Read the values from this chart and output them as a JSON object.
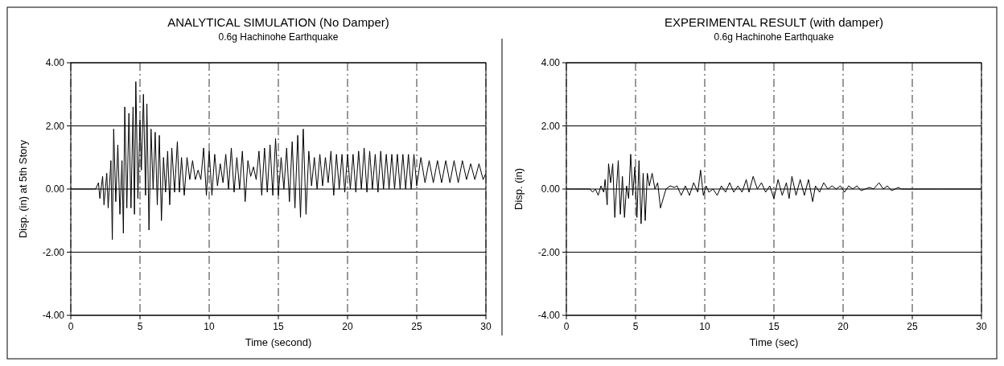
{
  "chart_data": [
    {
      "type": "line",
      "title": "ANALYTICAL SIMULATION (No Damper)",
      "subtitle": "0.6g Hachinohe Earthquake",
      "xlabel": "Time (second)",
      "ylabel": "Disp. (in) at 5th Story",
      "color": "#000000",
      "grid": true,
      "xlim": [
        0,
        30
      ],
      "xticks": [
        0,
        5,
        10,
        15,
        20,
        25,
        30
      ],
      "ylim": [
        -4,
        4
      ],
      "yticks": [
        {
          "value": 4,
          "label": "4.00"
        },
        {
          "value": 2,
          "label": "2.00"
        },
        {
          "value": 0,
          "label": "0.00"
        },
        {
          "value": -2,
          "label": "-2.00"
        },
        {
          "value": -4,
          "label": "-4.00"
        }
      ],
      "x": [
        0,
        1.8,
        2.0,
        2.1,
        2.3,
        2.4,
        2.6,
        2.7,
        2.9,
        3.0,
        3.1,
        3.25,
        3.4,
        3.55,
        3.7,
        3.8,
        3.9,
        4.05,
        4.2,
        4.35,
        4.5,
        4.6,
        4.7,
        4.85,
        5.0,
        5.1,
        5.25,
        5.4,
        5.5,
        5.65,
        5.8,
        5.95,
        6.1,
        6.25,
        6.4,
        6.55,
        6.7,
        6.85,
        7.0,
        7.15,
        7.3,
        7.5,
        7.7,
        7.85,
        8.0,
        8.2,
        8.4,
        8.6,
        8.8,
        9.0,
        9.2,
        9.4,
        9.6,
        9.8,
        10.0,
        10.2,
        10.4,
        10.6,
        10.8,
        11.0,
        11.2,
        11.4,
        11.6,
        11.8,
        12.0,
        12.2,
        12.4,
        12.6,
        12.8,
        13.0,
        13.2,
        13.4,
        13.6,
        13.8,
        14.0,
        14.2,
        14.4,
        14.6,
        14.8,
        15.0,
        15.2,
        15.4,
        15.6,
        15.8,
        16.0,
        16.2,
        16.4,
        16.6,
        16.8,
        17.0,
        17.2,
        17.4,
        17.6,
        17.8,
        18.0,
        18.2,
        18.4,
        18.6,
        18.8,
        19.0,
        19.2,
        19.4,
        19.6,
        19.8,
        20.0,
        20.2,
        20.4,
        20.6,
        20.8,
        21.0,
        21.2,
        21.4,
        21.6,
        21.8,
        22.0,
        22.2,
        22.4,
        22.6,
        22.8,
        23.0,
        23.2,
        23.4,
        23.6,
        23.8,
        24.0,
        24.2,
        24.4,
        24.6,
        24.8,
        25.0,
        25.3,
        25.6,
        25.9,
        26.2,
        26.5,
        26.8,
        27.1,
        27.4,
        27.7,
        28.0,
        28.3,
        28.6,
        28.9,
        29.2,
        29.5,
        29.8,
        30
      ],
      "values": [
        0,
        0,
        0.2,
        -0.3,
        0.4,
        -0.5,
        0.5,
        -0.6,
        0.9,
        -1.6,
        1.9,
        -0.4,
        1.4,
        -0.8,
        0.9,
        -1.4,
        2.6,
        -0.6,
        2.4,
        -0.6,
        2.6,
        -0.8,
        3.4,
        -0.3,
        2.2,
        0.6,
        3.0,
        -0.2,
        2.7,
        -1.3,
        1.9,
        0.0,
        1.8,
        -0.5,
        1.7,
        -1.0,
        1.0,
        -0.1,
        1.2,
        -0.5,
        1.3,
        -0.1,
        1.5,
        -0.1,
        1.0,
        -0.2,
        1.0,
        0.3,
        0.9,
        0.3,
        0.6,
        0.3,
        1.3,
        -0.2,
        1.2,
        -0.2,
        1.1,
        0.1,
        0.8,
        0.2,
        1.1,
        0.0,
        1.3,
        -0.1,
        1.0,
        0.0,
        1.2,
        -0.4,
        0.9,
        0.4,
        0.7,
        0.3,
        1.2,
        -0.2,
        1.3,
        -0.1,
        1.4,
        -0.2,
        1.6,
        -0.2,
        1.0,
        0.0,
        1.3,
        -0.4,
        1.5,
        -0.6,
        1.7,
        -0.9,
        1.9,
        -0.8,
        1.2,
        0.1,
        1.0,
        0.0,
        1.1,
        0.1,
        1.0,
        0.2,
        1.2,
        -0.2,
        1.1,
        0.0,
        1.1,
        -0.1,
        1.1,
        0.0,
        1.1,
        -0.1,
        1.2,
        0.0,
        1.3,
        -0.1,
        1.2,
        0.0,
        1.1,
        -0.1,
        1.2,
        0.0,
        1.1,
        0.0,
        1.1,
        0.0,
        1.1,
        0.0,
        1.1,
        0.0,
        1.1,
        0.0,
        1.1,
        0.1,
        1.0,
        0.2,
        0.9,
        0.2,
        0.9,
        0.2,
        0.9,
        0.2,
        0.9,
        0.2,
        0.9,
        0.3,
        0.8,
        0.3,
        0.8,
        0.3,
        0.5
      ]
    },
    {
      "type": "line",
      "title": "EXPERIMENTAL RESULT (with damper)",
      "subtitle": "0.6g Hachinohe Earthquake",
      "xlabel": "Time (sec)",
      "ylabel": "Disp. (in)",
      "color": "#000000",
      "grid": true,
      "xlim": [
        0,
        30
      ],
      "xticks": [
        0,
        5,
        10,
        15,
        20,
        25,
        30
      ],
      "ylim": [
        -4,
        4
      ],
      "yticks": [
        {
          "value": 4,
          "label": "4.00"
        },
        {
          "value": 2,
          "label": "2.00"
        },
        {
          "value": 0,
          "label": "0.00"
        },
        {
          "value": -2,
          "label": "-2.00"
        },
        {
          "value": -4,
          "label": "-4.00"
        }
      ],
      "x": [
        0,
        1.7,
        1.9,
        2.1,
        2.3,
        2.5,
        2.7,
        2.8,
        2.95,
        3.05,
        3.2,
        3.35,
        3.5,
        3.65,
        3.75,
        3.9,
        4.05,
        4.2,
        4.35,
        4.5,
        4.65,
        4.8,
        4.95,
        5.1,
        5.25,
        5.4,
        5.55,
        5.7,
        5.85,
        6.0,
        6.2,
        6.4,
        6.6,
        6.8,
        7.0,
        7.2,
        7.5,
        7.8,
        8.0,
        8.3,
        8.6,
        8.9,
        9.2,
        9.5,
        9.7,
        9.9,
        10.1,
        10.3,
        10.6,
        10.9,
        11.2,
        11.5,
        11.8,
        12.1,
        12.4,
        12.7,
        13.0,
        13.2,
        13.5,
        13.8,
        14.1,
        14.4,
        14.7,
        15.0,
        15.3,
        15.6,
        15.9,
        16.1,
        16.3,
        16.6,
        16.9,
        17.2,
        17.5,
        17.8,
        18.0,
        18.3,
        18.6,
        18.9,
        19.2,
        19.5,
        19.8,
        20.1,
        20.4,
        20.7,
        21.0,
        21.3,
        21.6,
        21.9,
        22.2,
        22.6,
        22.9,
        23.2,
        23.5,
        24.0,
        24.2,
        27,
        30
      ],
      "values": [
        0,
        0,
        -0.1,
        0.0,
        -0.2,
        0.1,
        -0.1,
        0.3,
        -0.5,
        0.8,
        0.2,
        0.8,
        -0.9,
        0.2,
        0.9,
        -0.8,
        0.4,
        -0.9,
        0.1,
        -0.3,
        1.1,
        -0.2,
        0.7,
        -0.9,
        0.9,
        -1.1,
        0.5,
        -1.0,
        0.5,
        0.1,
        0.5,
        0.0,
        0.2,
        -0.6,
        -0.3,
        0.0,
        0.1,
        0.05,
        0.1,
        -0.2,
        0.1,
        -0.2,
        0.2,
        -0.1,
        0.6,
        -0.2,
        0.1,
        -0.1,
        0.0,
        -0.2,
        0.1,
        -0.1,
        0.2,
        -0.1,
        0.1,
        -0.1,
        0.3,
        -0.1,
        0.4,
        0.0,
        0.2,
        -0.1,
        0.1,
        -0.3,
        0.3,
        -0.2,
        0.2,
        -0.3,
        0.4,
        -0.2,
        0.3,
        -0.2,
        0.3,
        -0.4,
        0.1,
        -0.1,
        0.2,
        0.0,
        0.1,
        0.0,
        0.1,
        -0.1,
        0.1,
        0.0,
        0.1,
        -0.05,
        0.0,
        0.05,
        0.0,
        0.2,
        0.0,
        0.1,
        -0.05,
        0.05,
        0.0,
        0.0,
        0.0
      ]
    }
  ]
}
